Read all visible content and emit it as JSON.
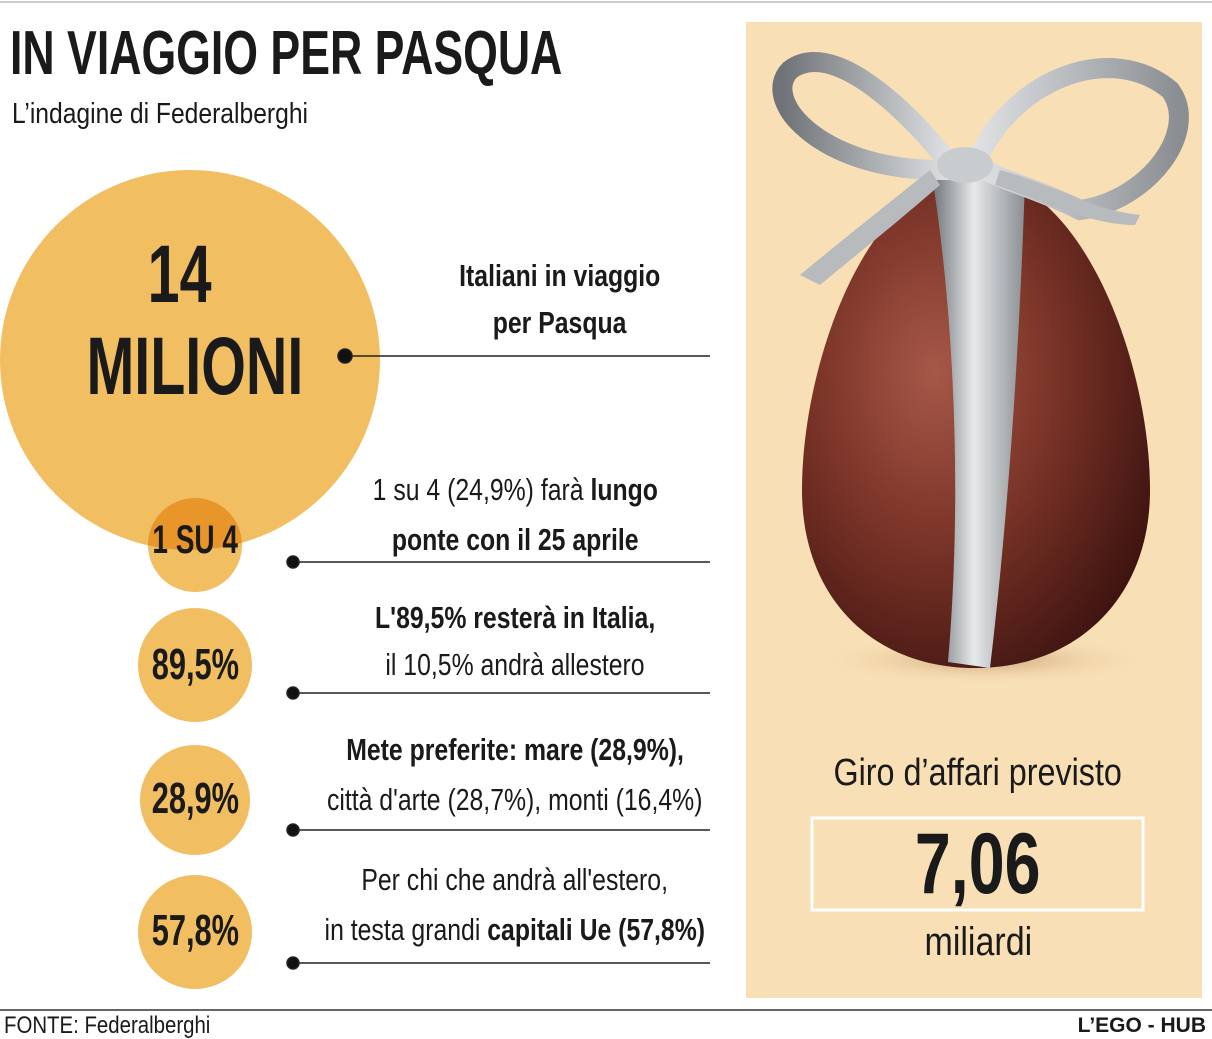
{
  "header": {
    "title": "IN VIAGGIO PER PASQUA",
    "subtitle": "L’indagine di Federalberghi"
  },
  "main": {
    "number": "14",
    "unit": "MILIONI",
    "label": [
      "Italiani in viaggio",
      "per Pasqua"
    ]
  },
  "items": [
    {
      "badge": "1 SU 4",
      "lines": [
        [
          "1 su 4 (24,9%) farà ",
          "lungo"
        ],
        [
          "ponte con il 25 aprile"
        ]
      ]
    },
    {
      "badge": "89,5%",
      "lines": [
        [
          "L'89,5% resterà in Italia,"
        ],
        [
          "il 10,5% andrà allestero"
        ]
      ]
    },
    {
      "badge": "28,9%",
      "lines": [
        [
          "Mete preferite: mare (28,9%),"
        ],
        [
          "città d'arte (28,7%), monti (16,4%)"
        ]
      ]
    },
    {
      "badge": "57,8%",
      "lines": [
        [
          "Per chi che andrà all'estero,"
        ],
        [
          "in testa grandi ",
          "capitali Ue (57,8%)"
        ]
      ]
    }
  ],
  "revenue": {
    "label": "Giro d’affari previsto",
    "value": "7,06",
    "unit": "miliardi"
  },
  "footer": {
    "source": "FONTE:  Federalberghi",
    "brand": "L’EGO - HUB"
  }
}
